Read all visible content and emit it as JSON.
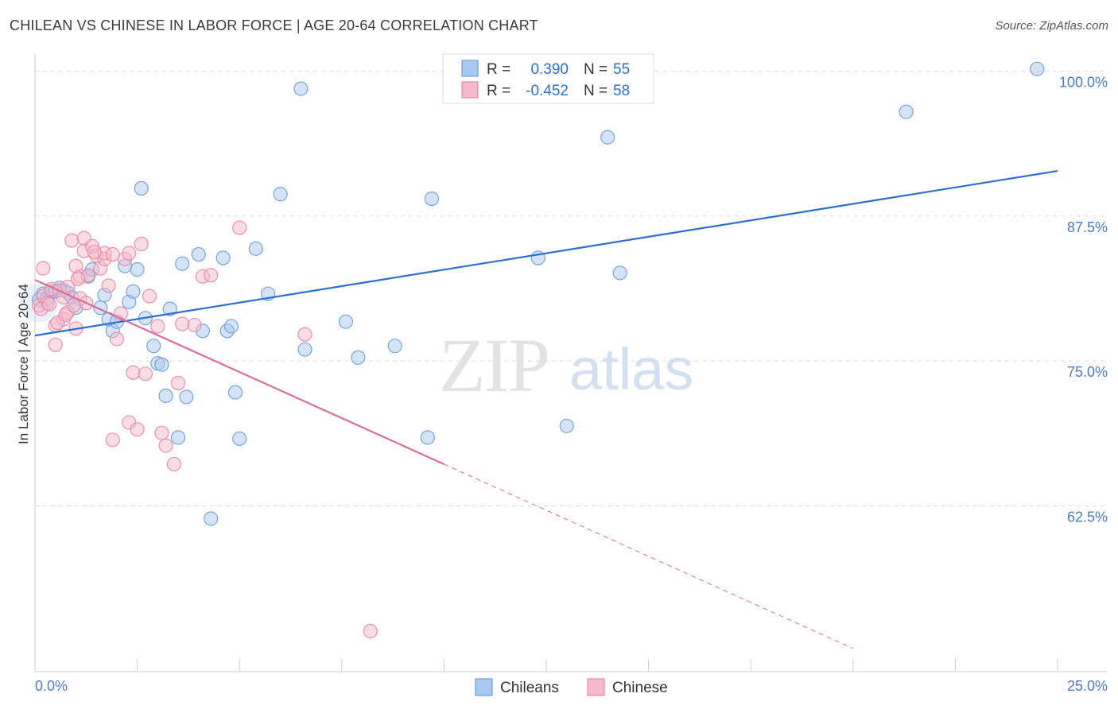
{
  "title": "CHILEAN VS CHINESE IN LABOR FORCE | AGE 20-64 CORRELATION CHART",
  "source": "Source: ZipAtlas.com",
  "watermark": {
    "zip": "ZIP",
    "atlas": "atlas"
  },
  "colors": {
    "blue_fill": "#a9c8f0",
    "blue_stroke": "#6f9fdc",
    "blue_line": "#2d6fd1",
    "pink_fill": "#f5b9cc",
    "pink_stroke": "#e88aa8",
    "pink_line": "#e06b97",
    "grid": "#dddddd",
    "axis_text": "#4a7ac8"
  },
  "chart_data": {
    "type": "scatter",
    "ylabel": "In Labor Force | Age 20-64",
    "xlim": [
      0,
      25
    ],
    "ylim": [
      50,
      100
    ],
    "x_tick_labels": [
      "0.0%",
      "25.0%"
    ],
    "y_ticks": [
      62.5,
      75.0,
      87.5,
      100.0
    ],
    "y_tick_labels": [
      "62.5%",
      "75.0%",
      "87.5%",
      "100.0%"
    ],
    "grid": true,
    "legend_top": [
      {
        "r_label": "R =",
        "r": "0.390",
        "n_label": "N =",
        "n": "55"
      },
      {
        "r_label": "R =",
        "r": "-0.452",
        "n_label": "N =",
        "n": "58"
      }
    ],
    "series": [
      {
        "name": "Chileans",
        "color": "blue",
        "trend": {
          "x": [
            0,
            25
          ],
          "y": [
            77.2,
            91.4
          ],
          "solid_to": 25
        },
        "points": [
          [
            0.1,
            80.3
          ],
          [
            0.2,
            80.8
          ],
          [
            0.3,
            80.4
          ],
          [
            0.4,
            81.0
          ],
          [
            0.5,
            81.0
          ],
          [
            0.6,
            81.3
          ],
          [
            0.7,
            81.1
          ],
          [
            0.8,
            80.9
          ],
          [
            0.9,
            80.5
          ],
          [
            1.0,
            79.6
          ],
          [
            1.3,
            82.3
          ],
          [
            1.4,
            82.9
          ],
          [
            1.6,
            79.6
          ],
          [
            1.7,
            80.7
          ],
          [
            1.8,
            78.6
          ],
          [
            1.9,
            77.6
          ],
          [
            2.0,
            78.4
          ],
          [
            2.2,
            83.2
          ],
          [
            2.3,
            80.1
          ],
          [
            2.4,
            81.0
          ],
          [
            2.5,
            82.9
          ],
          [
            2.6,
            89.9
          ],
          [
            2.7,
            78.7
          ],
          [
            2.9,
            76.3
          ],
          [
            3.0,
            74.8
          ],
          [
            3.1,
            74.7
          ],
          [
            3.2,
            72.0
          ],
          [
            3.3,
            79.5
          ],
          [
            3.5,
            68.4
          ],
          [
            3.6,
            83.4
          ],
          [
            3.7,
            71.9
          ],
          [
            4.0,
            84.2
          ],
          [
            4.1,
            77.6
          ],
          [
            4.3,
            61.4
          ],
          [
            4.6,
            83.9
          ],
          [
            4.7,
            77.6
          ],
          [
            4.8,
            78.0
          ],
          [
            4.9,
            72.3
          ],
          [
            5.0,
            68.3
          ],
          [
            5.4,
            84.7
          ],
          [
            5.7,
            80.8
          ],
          [
            6.0,
            89.4
          ],
          [
            6.5,
            98.5
          ],
          [
            6.6,
            76.0
          ],
          [
            7.6,
            78.4
          ],
          [
            7.9,
            75.3
          ],
          [
            8.8,
            76.3
          ],
          [
            9.6,
            68.4
          ],
          [
            9.7,
            89.0
          ],
          [
            12.3,
            83.9
          ],
          [
            13.0,
            69.4
          ],
          [
            14.0,
            94.3
          ],
          [
            14.3,
            82.6
          ],
          [
            21.3,
            96.5
          ],
          [
            24.5,
            100.2
          ]
        ]
      },
      {
        "name": "Chinese",
        "color": "pink",
        "trend": {
          "x": [
            0,
            20
          ],
          "y": [
            82.0,
            50.2
          ],
          "solid_to": 10.0
        },
        "points": [
          [
            0.1,
            79.8
          ],
          [
            0.2,
            80.6
          ],
          [
            0.2,
            83.0
          ],
          [
            0.3,
            80.0
          ],
          [
            0.4,
            81.2
          ],
          [
            0.5,
            76.4
          ],
          [
            0.5,
            78.1
          ],
          [
            0.6,
            81.1
          ],
          [
            0.7,
            80.5
          ],
          [
            0.7,
            78.6
          ],
          [
            0.8,
            79.2
          ],
          [
            0.8,
            81.4
          ],
          [
            0.9,
            85.4
          ],
          [
            1.0,
            77.8
          ],
          [
            1.0,
            83.2
          ],
          [
            1.1,
            80.4
          ],
          [
            1.1,
            82.3
          ],
          [
            1.2,
            85.6
          ],
          [
            1.2,
            84.5
          ],
          [
            1.3,
            82.4
          ],
          [
            1.4,
            84.9
          ],
          [
            1.5,
            84.1
          ],
          [
            1.6,
            83.0
          ],
          [
            1.7,
            83.8
          ],
          [
            1.7,
            84.3
          ],
          [
            1.8,
            81.5
          ],
          [
            1.9,
            68.2
          ],
          [
            1.9,
            84.2
          ],
          [
            2.0,
            76.9
          ],
          [
            2.1,
            79.1
          ],
          [
            2.2,
            83.8
          ],
          [
            2.3,
            69.7
          ],
          [
            2.3,
            84.3
          ],
          [
            2.4,
            74.0
          ],
          [
            2.5,
            69.1
          ],
          [
            2.6,
            85.1
          ],
          [
            2.7,
            73.9
          ],
          [
            2.8,
            80.6
          ],
          [
            3.0,
            78.0
          ],
          [
            3.1,
            68.8
          ],
          [
            3.2,
            67.7
          ],
          [
            3.4,
            66.1
          ],
          [
            3.5,
            73.1
          ],
          [
            3.6,
            78.2
          ],
          [
            3.9,
            78.1
          ],
          [
            4.1,
            82.3
          ],
          [
            4.3,
            82.4
          ],
          [
            5.0,
            86.5
          ],
          [
            6.6,
            77.3
          ],
          [
            8.2,
            51.7
          ],
          [
            0.15,
            79.5
          ],
          [
            0.35,
            79.9
          ],
          [
            0.55,
            78.3
          ],
          [
            0.75,
            79.0
          ],
          [
            0.95,
            79.8
          ],
          [
            1.05,
            82.1
          ],
          [
            1.25,
            80.0
          ],
          [
            1.45,
            84.4
          ]
        ]
      }
    ]
  },
  "legend_bottom": [
    {
      "label": "Chileans",
      "color": "blue"
    },
    {
      "label": "Chinese",
      "color": "pink"
    }
  ]
}
